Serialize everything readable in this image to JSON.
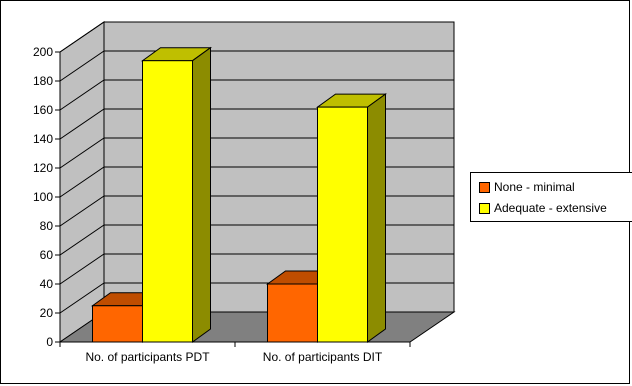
{
  "chart_data": {
    "type": "bar",
    "style": "3d-clustered-column",
    "categories": [
      "No. of participants PDT",
      "No. of participants DIT"
    ],
    "series": [
      {
        "name": "None - minimal",
        "values": [
          25,
          40
        ],
        "color": "#FF6600"
      },
      {
        "name": "Adequate - extensive",
        "values": [
          194,
          162
        ],
        "color": "#FFFF00"
      }
    ],
    "ylim": [
      0,
      200
    ],
    "yticks": [
      0,
      20,
      40,
      60,
      80,
      100,
      120,
      140,
      160,
      180,
      200
    ],
    "grid": true,
    "legend_position": "right",
    "wall_color": "#C0C0C0",
    "floor_color": "#808080"
  }
}
